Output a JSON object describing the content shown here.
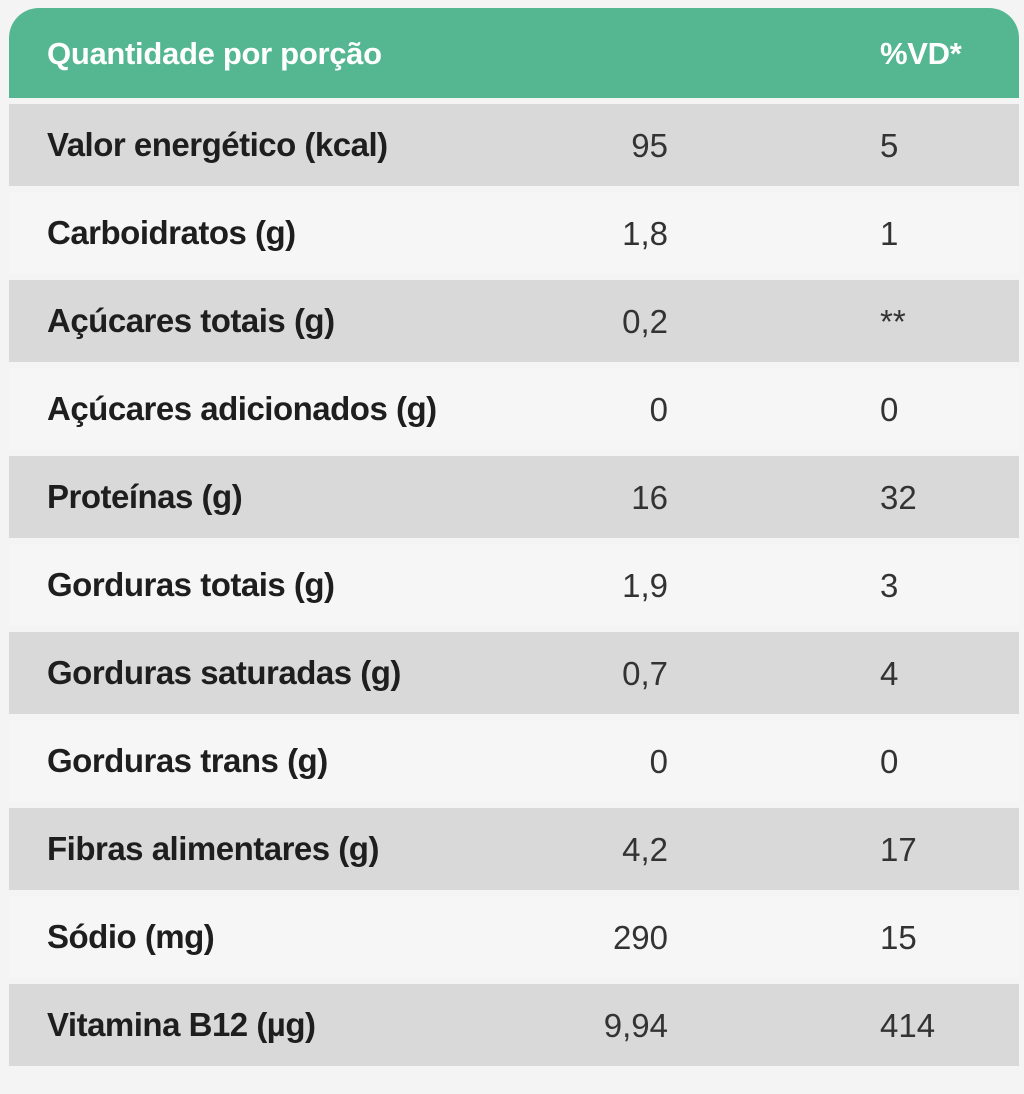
{
  "header": {
    "label": "Quantidade por porção",
    "vd": "%VD*"
  },
  "rows": [
    {
      "label": "Valor energético (kcal)",
      "amount": "95",
      "vd": "5"
    },
    {
      "label": "Carboidratos (g)",
      "amount": "1,8",
      "vd": "1"
    },
    {
      "label": "Açúcares totais (g)",
      "amount": "0,2",
      "vd": "**"
    },
    {
      "label": "Açúcares adicionados (g)",
      "amount": "0",
      "vd": "0"
    },
    {
      "label": "Proteínas (g)",
      "amount": "16",
      "vd": "32"
    },
    {
      "label": "Gorduras totais (g)",
      "amount": "1,9",
      "vd": "3"
    },
    {
      "label": "Gorduras saturadas (g)",
      "amount": "0,7",
      "vd": "4"
    },
    {
      "label": "Gorduras trans (g)",
      "amount": "0",
      "vd": "0"
    },
    {
      "label": "Fibras alimentares (g)",
      "amount": "4,2",
      "vd": "17"
    },
    {
      "label": "Sódio (mg)",
      "amount": "290",
      "vd": "15"
    },
    {
      "label": "Vitamina B12 (µg)",
      "amount": "9,94",
      "vd": "414"
    }
  ],
  "colors": {
    "header_bg": "#55b692",
    "row_dark": "#d9d9d9",
    "row_light": "#f6f6f6"
  }
}
